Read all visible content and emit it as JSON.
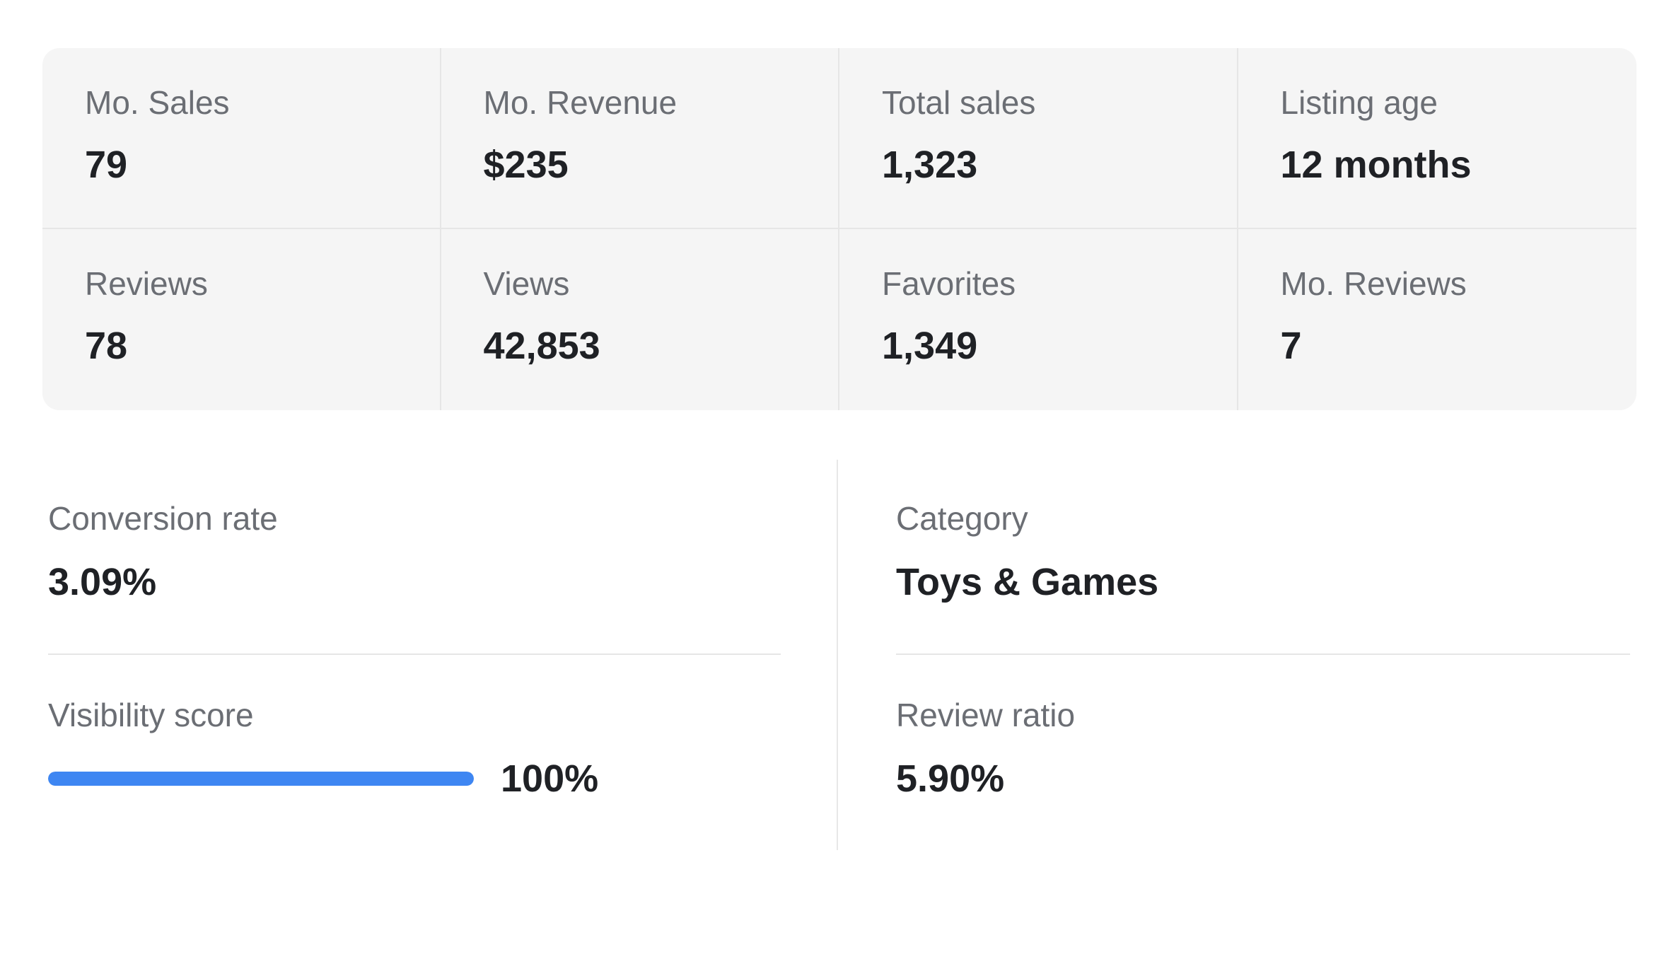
{
  "stats": [
    {
      "label": "Mo. Sales",
      "value": "79"
    },
    {
      "label": "Mo. Revenue",
      "value": "$235"
    },
    {
      "label": "Total sales",
      "value": "1,323"
    },
    {
      "label": "Listing age",
      "value": "12 months"
    },
    {
      "label": "Reviews",
      "value": "78"
    },
    {
      "label": "Views",
      "value": "42,853"
    },
    {
      "label": "Favorites",
      "value": "1,349"
    },
    {
      "label": "Mo. Reviews",
      "value": "7"
    }
  ],
  "conversion": {
    "label": "Conversion rate",
    "value": "3.09%"
  },
  "visibility": {
    "label": "Visibility score",
    "value": "100%",
    "fill_fraction": 1.0,
    "bar_color": "#3e86f2"
  },
  "category": {
    "label": "Category",
    "value": "Toys & Games"
  },
  "review_ratio": {
    "label": "Review ratio",
    "value": "5.90%"
  }
}
